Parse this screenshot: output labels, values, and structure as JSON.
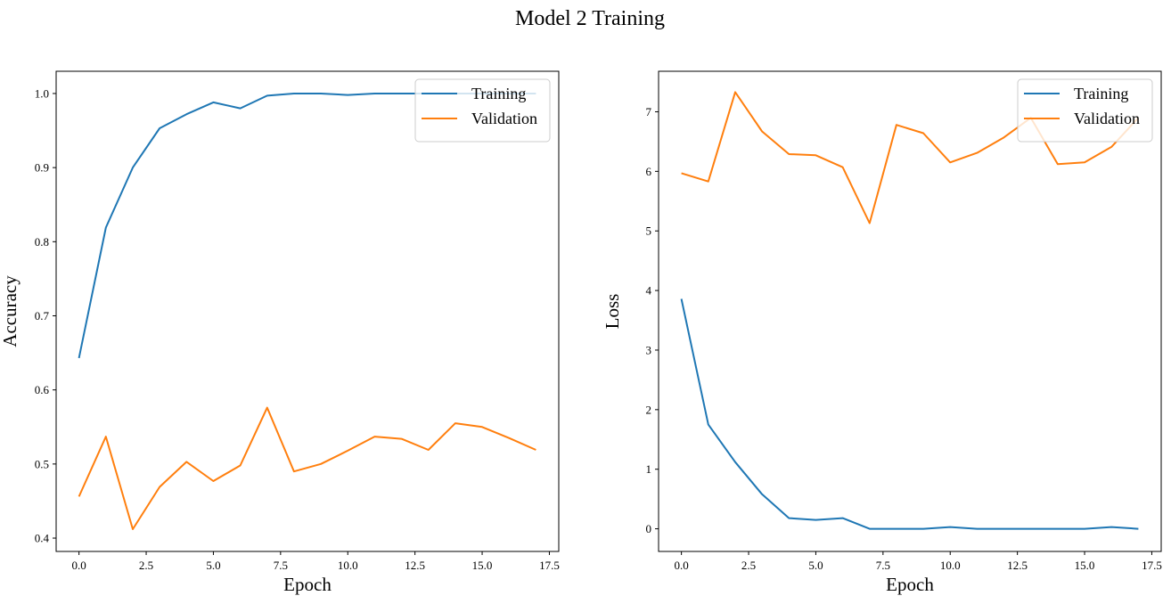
{
  "figure": {
    "title": "Model 2 Training"
  },
  "colors": {
    "training": "#1f77b4",
    "validation": "#ff7f0e",
    "axes": "#000000",
    "background": "#ffffff"
  },
  "chart_data": [
    {
      "type": "line",
      "xlabel": "Epoch",
      "ylabel": "Accuracy",
      "xlim": [
        -0.85,
        17.85
      ],
      "ylim": [
        0.382,
        1.03
      ],
      "xticks": [
        0.0,
        2.5,
        5.0,
        7.5,
        10.0,
        12.5,
        15.0,
        17.5
      ],
      "xtick_labels": [
        "0.0",
        "2.5",
        "5.0",
        "7.5",
        "10.0",
        "12.5",
        "15.0",
        "17.5"
      ],
      "yticks": [
        0.4,
        0.5,
        0.6,
        0.7,
        0.8,
        0.9,
        1.0
      ],
      "ytick_labels": [
        "0.4",
        "0.5",
        "0.6",
        "0.7",
        "0.8",
        "0.9",
        "1.0"
      ],
      "grid": false,
      "legend": "upper right",
      "x": [
        0,
        1,
        2,
        3,
        4,
        5,
        6,
        7,
        8,
        9,
        10,
        11,
        12,
        13,
        14,
        15,
        16,
        17
      ],
      "series": [
        {
          "name": "Training",
          "values": [
            0.643,
            0.819,
            0.9,
            0.953,
            0.972,
            0.988,
            0.98,
            0.997,
            1.0,
            1.0,
            0.998,
            1.0,
            1.0,
            1.0,
            1.0,
            1.0,
            1.0,
            1.0
          ]
        },
        {
          "name": "Validation",
          "values": [
            0.456,
            0.537,
            0.412,
            0.469,
            0.503,
            0.477,
            0.498,
            0.576,
            0.49,
            0.5,
            0.518,
            0.537,
            0.534,
            0.519,
            0.555,
            0.55,
            0.535,
            0.519
          ]
        }
      ]
    },
    {
      "type": "line",
      "xlabel": "Epoch",
      "ylabel": "Loss",
      "xlim": [
        -0.85,
        17.85
      ],
      "ylim": [
        -0.38,
        7.68
      ],
      "xticks": [
        0.0,
        2.5,
        5.0,
        7.5,
        10.0,
        12.5,
        15.0,
        17.5
      ],
      "xtick_labels": [
        "0.0",
        "2.5",
        "5.0",
        "7.5",
        "10.0",
        "12.5",
        "15.0",
        "17.5"
      ],
      "yticks": [
        0,
        1,
        2,
        3,
        4,
        5,
        6,
        7
      ],
      "ytick_labels": [
        "0",
        "1",
        "2",
        "3",
        "4",
        "5",
        "6",
        "7"
      ],
      "grid": false,
      "legend": "upper right",
      "x": [
        0,
        1,
        2,
        3,
        4,
        5,
        6,
        7,
        8,
        9,
        10,
        11,
        12,
        13,
        14,
        15,
        16,
        17
      ],
      "series": [
        {
          "name": "Training",
          "values": [
            3.86,
            1.75,
            1.12,
            0.58,
            0.18,
            0.15,
            0.18,
            0.0,
            0.0,
            0.0,
            0.03,
            0.0,
            0.0,
            0.0,
            0.0,
            0.0,
            0.03,
            0.0
          ]
        },
        {
          "name": "Validation",
          "values": [
            5.97,
            5.83,
            7.33,
            6.67,
            6.29,
            6.27,
            6.07,
            5.13,
            6.78,
            6.64,
            6.15,
            6.31,
            6.57,
            6.9,
            6.12,
            6.15,
            6.41,
            6.9
          ]
        }
      ]
    }
  ]
}
